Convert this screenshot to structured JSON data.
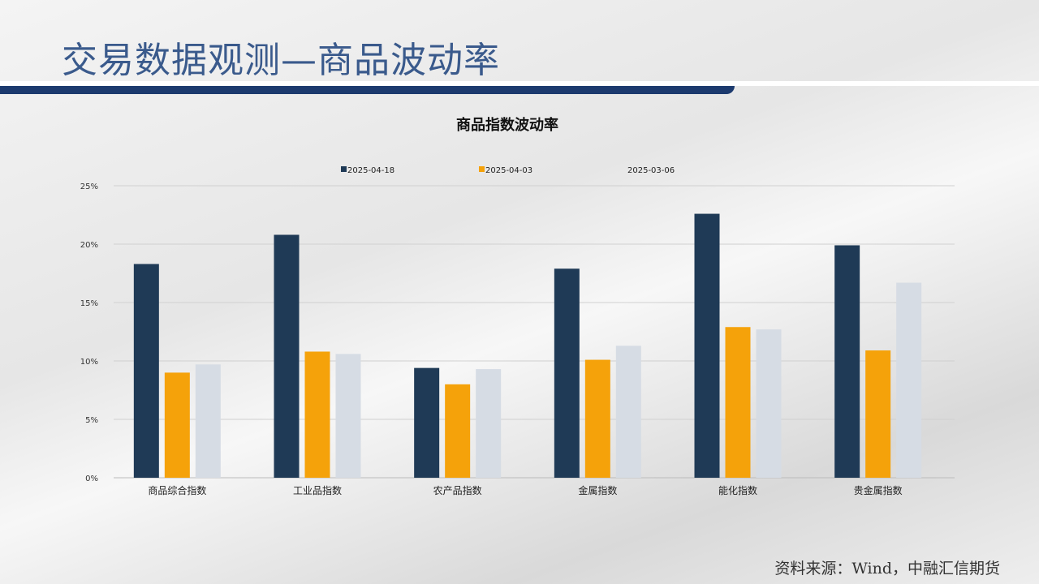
{
  "header": {
    "title": "交易数据观测—商品波动率"
  },
  "footer": {
    "source": "资料来源：Wind，中融汇信期货"
  },
  "chart_data": {
    "type": "bar",
    "title": "商品指数波动率",
    "categories": [
      "商品综合指数",
      "工业品指数",
      "农产品指数",
      "金属指数",
      "能化指数",
      "贵金属指数"
    ],
    "series": [
      {
        "name": "2025-04-18",
        "color": "#1f3a56",
        "values": [
          18.3,
          20.8,
          9.4,
          17.9,
          22.6,
          19.9
        ]
      },
      {
        "name": "2025-04-03",
        "color": "#f5a20a",
        "values": [
          9.0,
          10.8,
          8.0,
          10.1,
          12.9,
          10.9
        ]
      },
      {
        "name": "2025-03-06",
        "color": "#d6dce4",
        "values": [
          9.7,
          10.6,
          9.3,
          11.3,
          12.7,
          16.7
        ]
      }
    ],
    "ylim": [
      0,
      25
    ],
    "yticks": [
      "0%",
      "5%",
      "10%",
      "15%",
      "20%",
      "25%"
    ],
    "grid": true,
    "legend": "top"
  }
}
